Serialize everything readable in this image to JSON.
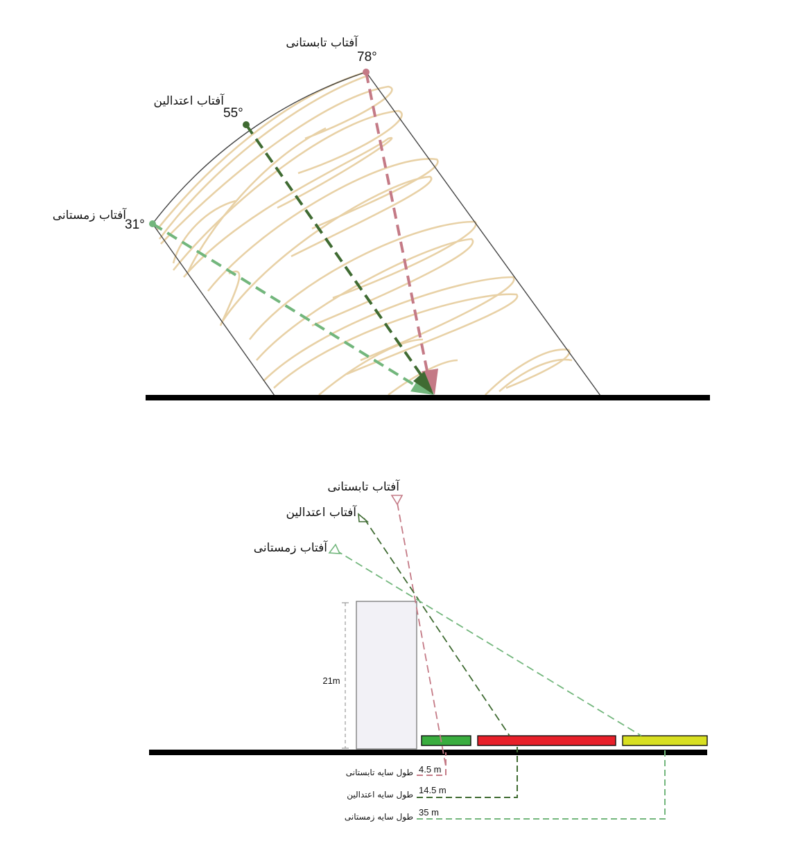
{
  "top_diagram": {
    "summer": {
      "label": "آفتاب تابستانی",
      "angle": "78°"
    },
    "equinox": {
      "label": "آفتاب اعتدالین",
      "angle": "55°"
    },
    "winter": {
      "label": "آفتاب زمستانی",
      "angle": "31°"
    }
  },
  "bottom_diagram": {
    "summer_label": "آفتاب تابستانی",
    "equinox_label": "آفتاب اعتدالین",
    "winter_label": "آفتاب زمستانی",
    "building_height": "21m",
    "shadows": [
      {
        "label": "طول سایه تابستانی",
        "value": "4.5 m"
      },
      {
        "label": "طول سایه اعتدالین",
        "value": "14.5 m"
      },
      {
        "label": "طول سایه زمستانی",
        "value": "35 m"
      }
    ]
  },
  "colors": {
    "summer": "#c47a86",
    "equinox": "#3f6b32",
    "winter": "#72b67c",
    "sunpath": "#e8d1a6",
    "bar_green": "#3aad3f",
    "bar_red": "#e8202a",
    "bar_yellow": "#d8df22",
    "building": "#f2f1f6"
  }
}
